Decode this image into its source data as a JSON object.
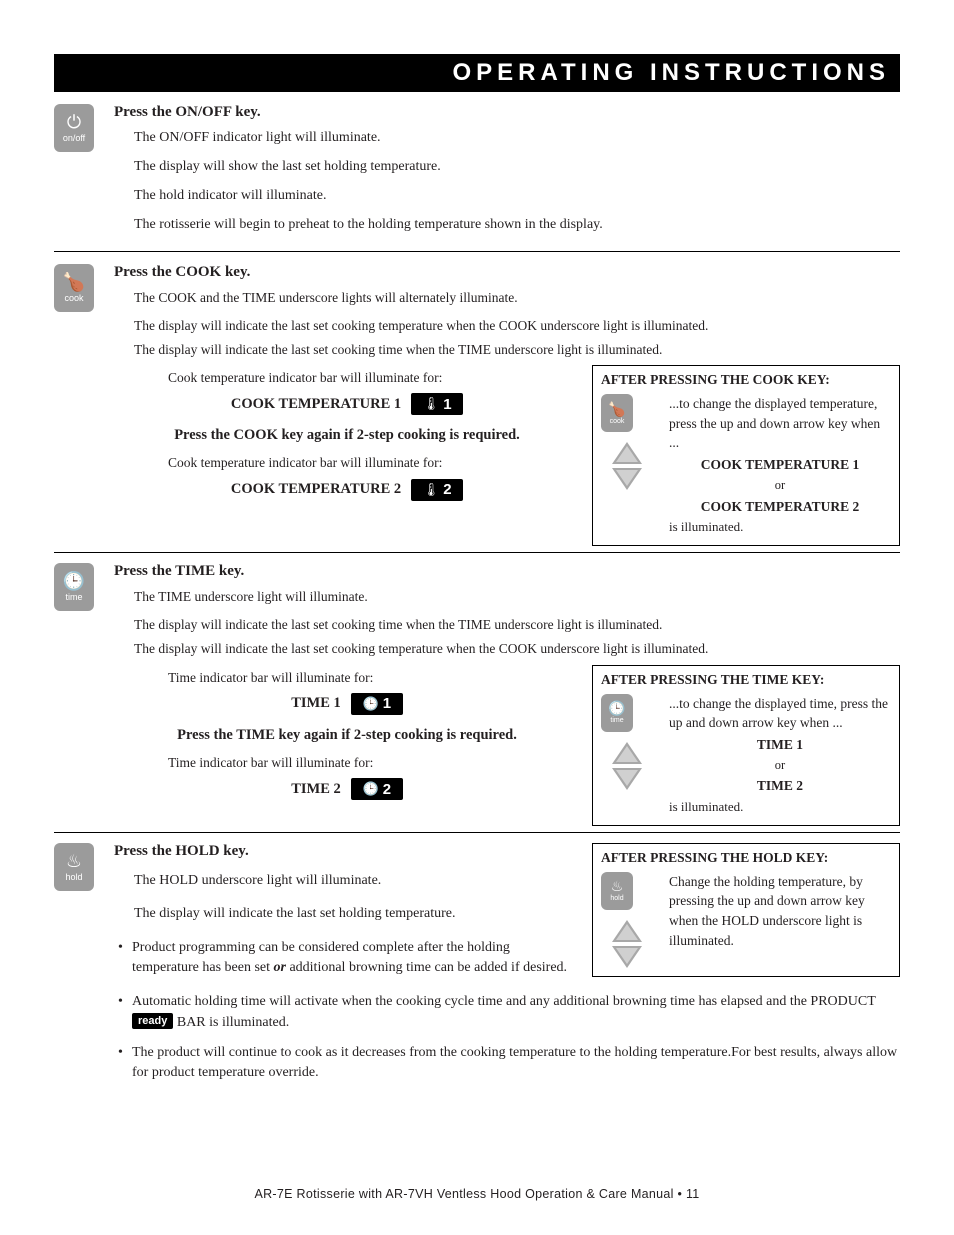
{
  "header": "OPERATING INSTRUCTIONS",
  "colors": {
    "header_bg": "#000000",
    "header_fg": "#ffffff",
    "key_bg": "#9b9b9b",
    "badge_bg": "#000000",
    "body_text": "#231f20"
  },
  "s1": {
    "icon_glyph": "⏻",
    "icon_label": "on/off",
    "head": "Press the ON/OFF key.",
    "p1": "The ON/OFF indicator light will illuminate.",
    "p2": "The display will show the last set holding temperature.",
    "p3": "The hold indicator will illuminate.",
    "p4": "The rotisserie will begin to preheat to the holding temperature shown in the display."
  },
  "s2": {
    "icon_glyph": "🍗",
    "icon_label": "cook",
    "head": "Press the COOK key.",
    "p1": "The COOK and the TIME underscore lights will alternately illuminate.",
    "p2": "The display will indicate the last set cooking temperature when the COOK underscore light is illuminated.",
    "p3": "The display will indicate the last set cooking time when the TIME underscore light is illuminated.",
    "p4": "Cook temperature indicator bar will illuminate for:",
    "t1_label": "COOK TEMPERATURE 1",
    "badge1_icon": "🌡",
    "badge1_num": "1",
    "again": "Press the COOK key again if 2-step cooking is required.",
    "p5": "Cook temperature indicator bar will illuminate for:",
    "t2_label": "COOK TEMPERATURE 2",
    "badge2_icon": "🌡",
    "badge2_num": "2",
    "callout": {
      "head": "AFTER PRESSING THE COOK KEY:",
      "icon_glyph": "🍗",
      "icon_label": "cook",
      "text": "...to change the displayed temperature, press the up and down arrow key when ...",
      "b1": "COOK TEMPERATURE 1",
      "or": "or",
      "b2": "COOK TEMPERATURE 2",
      "ill": "is illuminated."
    }
  },
  "s3": {
    "icon_glyph": "🕒",
    "icon_label": "time",
    "head": "Press the TIME key.",
    "p1": "The TIME underscore light will illuminate.",
    "p2": "The display will indicate the last set cooking time when the TIME underscore light is illuminated.",
    "p3": "The display will indicate the last set cooking temperature when the COOK underscore light is illuminated.",
    "p4": "Time indicator bar will illuminate for:",
    "t1_label": "TIME 1",
    "badge1_icon": "🕒",
    "badge1_num": "1",
    "again": "Press the TIME key again if 2-step cooking is required.",
    "p5": "Time indicator bar will illuminate for:",
    "t2_label": "TIME 2",
    "badge2_icon": "🕒",
    "badge2_num": "2",
    "callout": {
      "head": "AFTER PRESSING THE  TIME KEY:",
      "icon_glyph": "🕒",
      "icon_label": "time",
      "text": "...to change the displayed time, press the up and down arrow key when ...",
      "b1": "TIME 1",
      "or": "or",
      "b2": "TIME 2",
      "ill": "is illuminated."
    }
  },
  "s4": {
    "icon_glyph": "♨",
    "icon_label": "hold",
    "head": "Press the HOLD key.",
    "p1": "The HOLD underscore light will illuminate.",
    "p2": "The display will indicate the last set holding temperature.",
    "b1a": "Product programming can be considered complete after the holding temperature has been set ",
    "b1_or": "or",
    "b1b": " additional browning time can be added if desired.",
    "b2a": "Automatic holding time will activate when the cooking cycle time and any additional browning time has elapsed and the PRODUCT ",
    "ready": "ready",
    "b2b": " BAR is illuminated.",
    "b3": "The product will continue to cook as it decreases from the cooking temperature to the holding temperature.For best results, always allow for product temperature override.",
    "callout": {
      "head": "AFTER PRESSING THE HOLD KEY:",
      "icon_glyph": "♨",
      "icon_label": "hold",
      "text": "Change the holding temperature, by pressing the up and down arrow key when the HOLD underscore light is illuminated."
    }
  },
  "footer": "AR-7E Rotisserie with AR-7VH Ventless Hood Operation & Care Manual • 11"
}
